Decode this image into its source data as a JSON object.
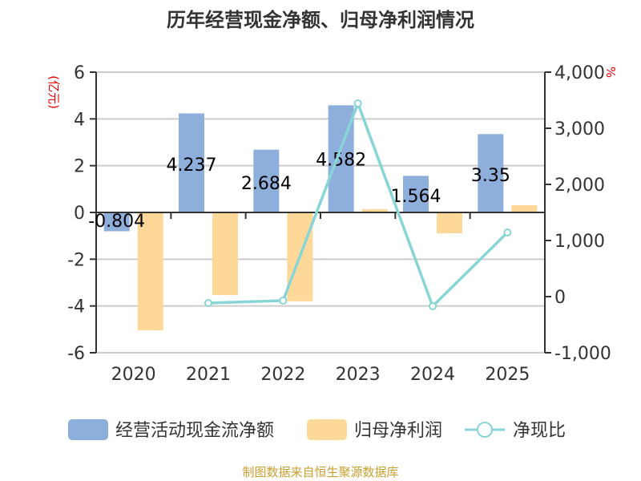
{
  "chart_data": {
    "type": "bar+line",
    "title": "历年经营现金净额、归母净利润情况",
    "categories": [
      "2020",
      "2021",
      "2022",
      "2023",
      "2024",
      "2025"
    ],
    "y_left": {
      "label": "(亿元)",
      "range": [
        -6,
        6
      ],
      "ticks": [
        "6",
        "4",
        "2",
        "0",
        "-2",
        "-4",
        "-6"
      ]
    },
    "y_right": {
      "label": "%",
      "range": [
        -1000,
        4000
      ],
      "ticks": [
        "4,000",
        "3,000",
        "2,000",
        "1,000",
        "0",
        "-1,000"
      ]
    },
    "grid": true,
    "legend_position": "bottom",
    "series": [
      {
        "name": "经营活动现金流净额",
        "type": "bar",
        "axis": "left",
        "color": "#8eaedb",
        "values": [
          -0.804,
          4.237,
          2.684,
          4.582,
          1.564,
          3.35
        ],
        "labels": [
          "-0.804",
          "4.237",
          "2.684",
          "4.582",
          "1.564",
          "3.35"
        ]
      },
      {
        "name": "归母净利润",
        "type": "bar",
        "axis": "left",
        "color": "#fed898",
        "values": [
          -5.04,
          -3.53,
          -3.8,
          0.14,
          -0.89,
          0.31
        ]
      },
      {
        "name": "净现比",
        "type": "line",
        "axis": "right",
        "color": "#88d5d8",
        "values": [
          null,
          -114,
          -71,
          3443,
          -171,
          1143
        ]
      }
    ]
  },
  "source": "制图数据来自恒生聚源数据库"
}
